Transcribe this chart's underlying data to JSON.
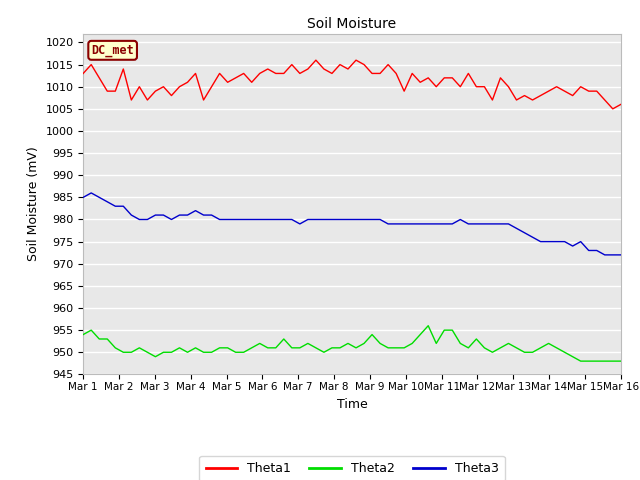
{
  "title": "Soil Moisture",
  "xlabel": "Time",
  "ylabel": "Soil Moisture (mV)",
  "ylim": [
    945,
    1022
  ],
  "yticks": [
    945,
    950,
    955,
    960,
    965,
    970,
    975,
    980,
    985,
    990,
    995,
    1000,
    1005,
    1010,
    1015,
    1020
  ],
  "annotation_text": "DC_met",
  "annotation_color": "#8B0000",
  "annotation_bg": "#FFFFCC",
  "fig_bg_color": "#FFFFFF",
  "plot_bg_color": "#E8E8E8",
  "grid_color": "#FFFFFF",
  "theta1_color": "#FF0000",
  "theta2_color": "#00DD00",
  "theta3_color": "#0000CC",
  "theta1": [
    1013,
    1015,
    1012,
    1009,
    1009,
    1014,
    1007,
    1010,
    1007,
    1009,
    1010,
    1008,
    1010,
    1011,
    1013,
    1007,
    1010,
    1013,
    1011,
    1012,
    1013,
    1011,
    1013,
    1014,
    1013,
    1013,
    1015,
    1013,
    1014,
    1016,
    1014,
    1013,
    1015,
    1014,
    1016,
    1015,
    1013,
    1013,
    1015,
    1013,
    1009,
    1013,
    1011,
    1012,
    1010,
    1012,
    1012,
    1010,
    1013,
    1010,
    1010,
    1007,
    1012,
    1010,
    1007,
    1008,
    1007,
    1008,
    1009,
    1010,
    1009,
    1008,
    1010,
    1009,
    1009,
    1007,
    1005,
    1006
  ],
  "theta2": [
    954,
    955,
    953,
    953,
    951,
    950,
    950,
    951,
    950,
    949,
    950,
    950,
    951,
    950,
    951,
    950,
    950,
    951,
    951,
    950,
    950,
    951,
    952,
    951,
    951,
    953,
    951,
    951,
    952,
    951,
    950,
    951,
    951,
    952,
    951,
    952,
    954,
    952,
    951,
    951,
    951,
    952,
    954,
    956,
    952,
    955,
    955,
    952,
    951,
    953,
    951,
    950,
    951,
    952,
    951,
    950,
    950,
    951,
    952,
    951,
    950,
    949,
    948,
    948,
    948,
    948,
    948,
    948
  ],
  "theta3": [
    985,
    986,
    985,
    984,
    983,
    983,
    981,
    980,
    980,
    981,
    981,
    980,
    981,
    981,
    982,
    981,
    981,
    980,
    980,
    980,
    980,
    980,
    980,
    980,
    980,
    980,
    980,
    979,
    980,
    980,
    980,
    980,
    980,
    980,
    980,
    980,
    980,
    980,
    979,
    979,
    979,
    979,
    979,
    979,
    979,
    979,
    979,
    980,
    979,
    979,
    979,
    979,
    979,
    979,
    978,
    977,
    976,
    975,
    975,
    975,
    975,
    974,
    975,
    973,
    973,
    972,
    972,
    972
  ],
  "n_points": 68,
  "xticklabels": [
    "Mar 1",
    "Mar 2",
    "Mar 3",
    "Mar 4",
    "Mar 5",
    "Mar 6",
    "Mar 7",
    "Mar 8",
    "Mar 9",
    "Mar 10",
    "Mar 11",
    "Mar 12",
    "Mar 13",
    "Mar 14",
    "Mar 15",
    "Mar 16"
  ],
  "legend_labels": [
    "Theta1",
    "Theta2",
    "Theta3"
  ]
}
